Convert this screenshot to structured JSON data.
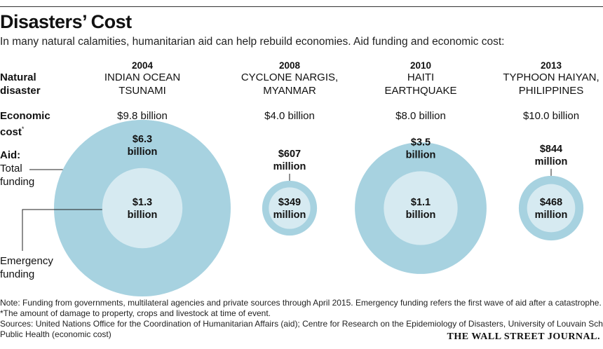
{
  "title": "Disasters’ Cost",
  "subtitle": "In many natural calamities, humanitarian aid can help rebuild economies. Aid funding and economic cost:",
  "row_labels": {
    "natural_disaster_1": "Natural",
    "natural_disaster_2": "disaster",
    "economic_cost_1": "Economic",
    "economic_cost_2": "cost",
    "economic_cost_mark": "*",
    "aid": "Aid:",
    "total_funding_1": "Total",
    "total_funding_2": "funding",
    "emergency_funding_1": "Emergency",
    "emergency_funding_2": "funding"
  },
  "chart_data": {
    "type": "nested-bubble",
    "title": "Disasters’ Cost",
    "series": [
      {
        "name": "Aid: Total funding",
        "unit": "USD billions",
        "values": [
          6.3,
          0.607,
          3.5,
          0.844
        ]
      },
      {
        "name": "Emergency funding",
        "unit": "USD billions",
        "values": [
          1.3,
          0.349,
          1.1,
          0.468
        ]
      },
      {
        "name": "Economic cost",
        "unit": "USD billions",
        "values": [
          9.8,
          4.0,
          8.0,
          10.0
        ]
      }
    ],
    "disasters": [
      {
        "year": "2004",
        "name": "INDIAN OCEAN\nTSUNAMI",
        "economic_cost": "$9.8 billion",
        "total": 6.3,
        "total_label_1": "$6.3",
        "total_label_2": "billion",
        "emergency": 1.3,
        "emergency_label_1": "$1.3",
        "emergency_label_2": "billion"
      },
      {
        "year": "2008",
        "name": "CYCLONE NARGIS,\nMYANMAR",
        "economic_cost": "$4.0 billion",
        "total": 0.607,
        "total_label_1": "$607",
        "total_label_2": "million",
        "emergency": 0.349,
        "emergency_label_1": "$349",
        "emergency_label_2": "million"
      },
      {
        "year": "2010",
        "name": "HAITI\nEARTHQUAKE",
        "economic_cost": "$8.0 billion",
        "total": 3.5,
        "total_label_1": "$3.5",
        "total_label_2": "billion",
        "emergency": 1.1,
        "emergency_label_1": "$1.1",
        "emergency_label_2": "billion"
      },
      {
        "year": "2013",
        "name": "TYPHOON HAIYAN,\nPHILIPPINES",
        "economic_cost": "$10.0 billion",
        "total": 0.844,
        "total_label_1": "$844",
        "total_label_2": "million",
        "emergency": 0.468,
        "emergency_label_1": "$468",
        "emergency_label_2": "million"
      }
    ],
    "colors": {
      "total": "#a7d2e0",
      "emergency": "#d6eaf1",
      "line": "#222222"
    }
  },
  "notes": {
    "note": "Note: Funding from governments, multilateral agencies and private sources through April 2015. Emergency funding refers the first wave of aid after a catastrophe.",
    "asterisk": "*The amount of damage to property, crops and livestock at time of event.",
    "sources_1": "Sources: United Nations Office for the Coordination of Humanitarian Affairs (aid); Centre for Research on the Epidemiology of Disasters, University of Louvain School of",
    "sources_2": "Public Health (economic cost)"
  },
  "credit": "THE WALL STREET JOURNAL."
}
